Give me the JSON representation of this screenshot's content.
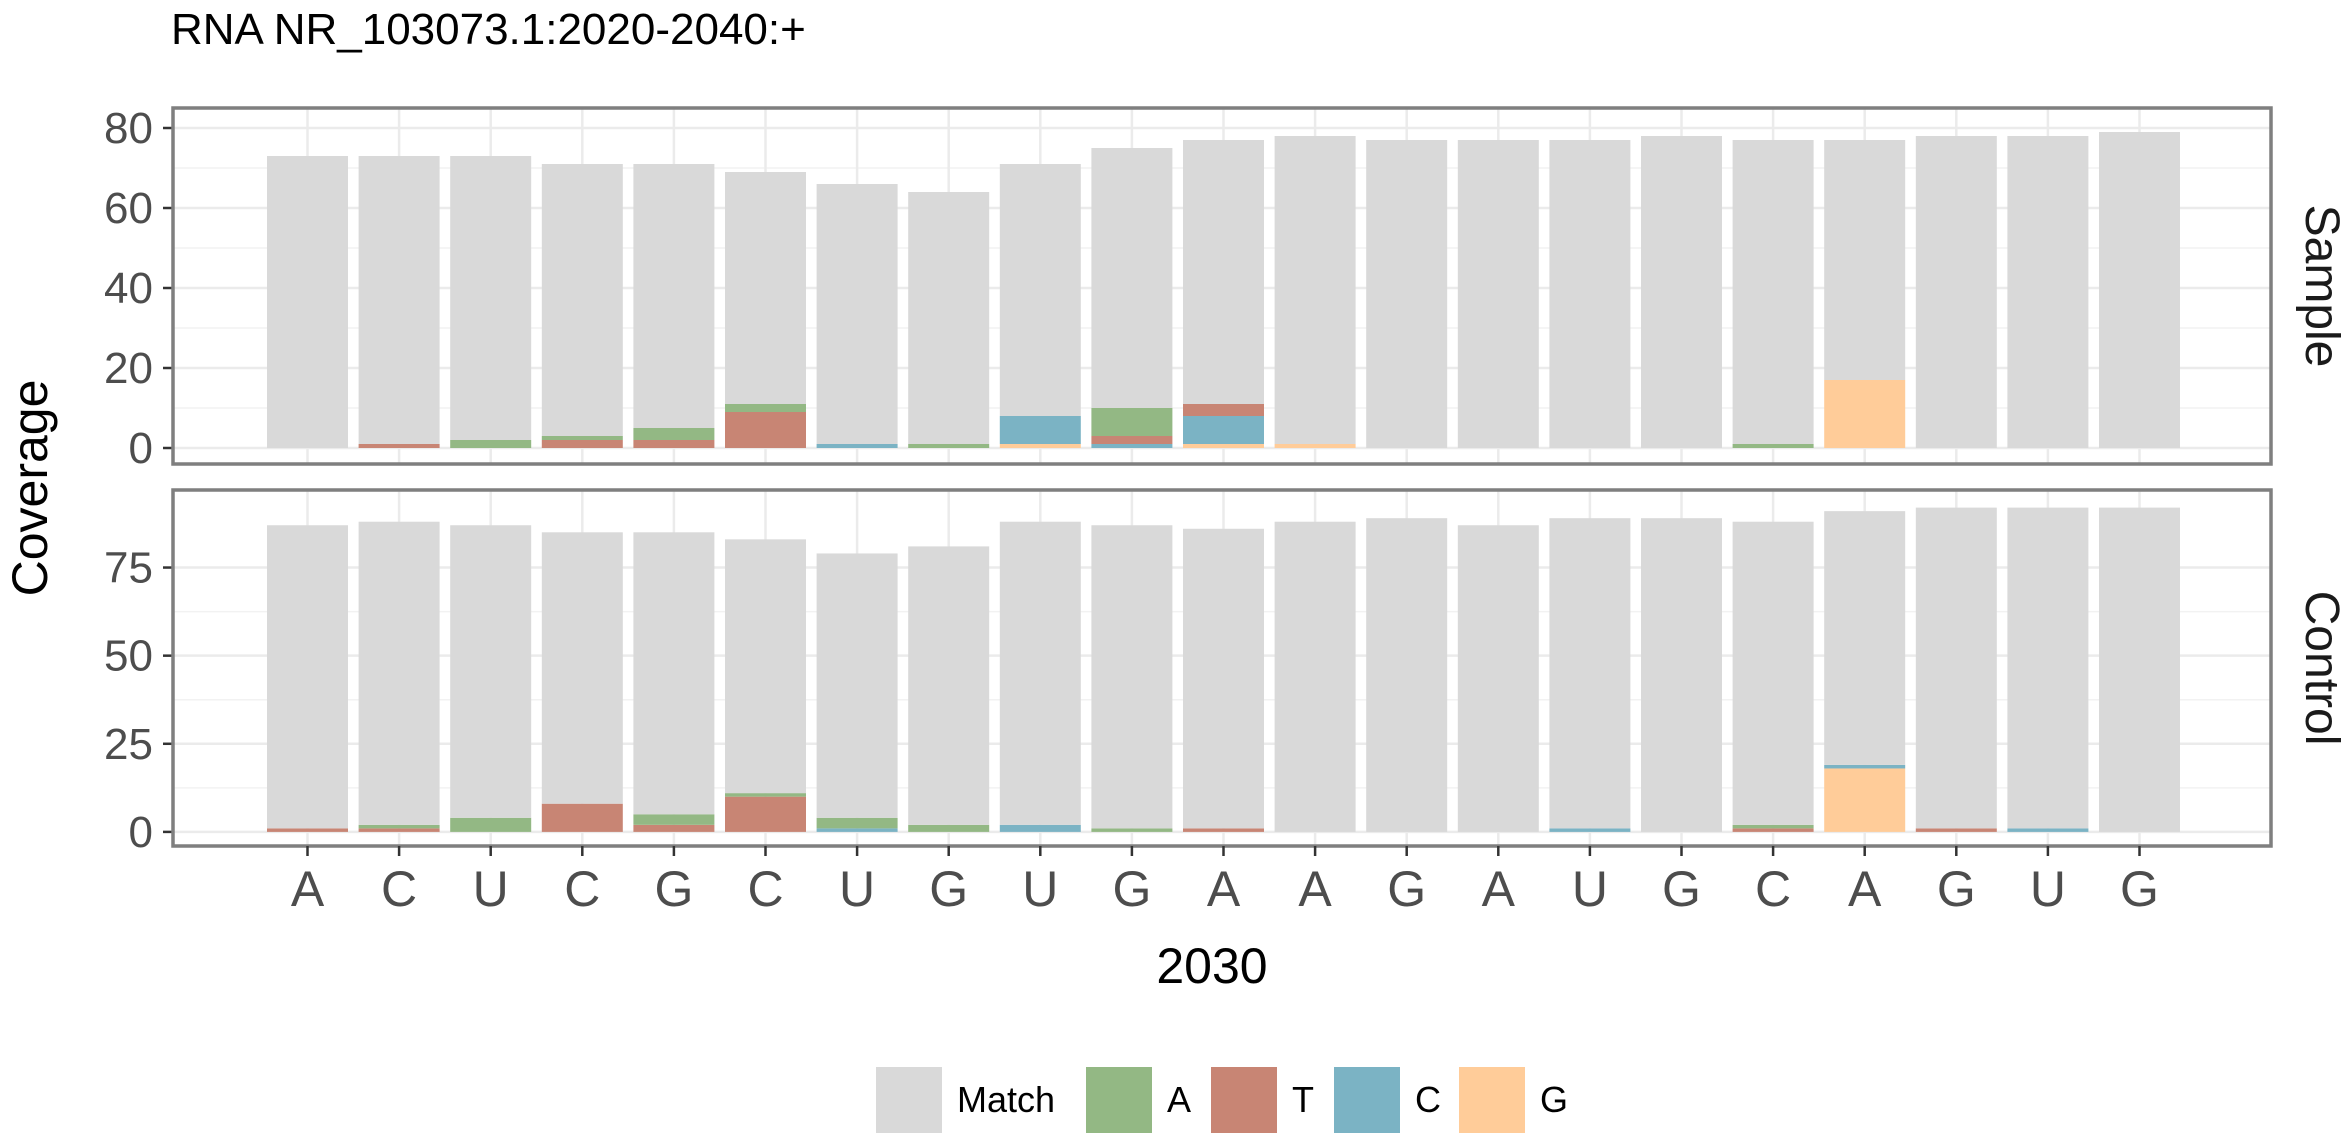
{
  "chart_data": {
    "type": "bar",
    "stacked": true,
    "title": "RNA  NR_103073.1:2020-2040:+",
    "xlabel": "2030",
    "ylabel": "Coverage",
    "x_tick_labels": [
      "A",
      "C",
      "U",
      "C",
      "G",
      "C",
      "U",
      "G",
      "U",
      "G",
      "A",
      "A",
      "G",
      "A",
      "U",
      "G",
      "C",
      "A",
      "G",
      "U",
      "G"
    ],
    "legend": {
      "placement": "bottom",
      "items": [
        {
          "key": "Match",
          "label": "Match",
          "color": "#d9d9d9"
        },
        {
          "key": "A",
          "label": "A",
          "color": "#93b884"
        },
        {
          "key": "T",
          "label": "T",
          "color": "#c88574"
        },
        {
          "key": "C",
          "label": "C",
          "color": "#7bb3c4"
        },
        {
          "key": "G",
          "label": "G",
          "color": "#ffcc99"
        }
      ]
    },
    "stack_order": [
      "G",
      "C",
      "T",
      "A",
      "Match"
    ],
    "panels": [
      {
        "name": "Sample",
        "ylim": [
          -4,
          85
        ],
        "yticks": [
          0,
          20,
          40,
          60,
          80
        ],
        "total": [
          73,
          73,
          73,
          71,
          71,
          69,
          66,
          64,
          71,
          75,
          77,
          78,
          77,
          77,
          77,
          78,
          77,
          77,
          78,
          78,
          79
        ],
        "series": {
          "G": [
            0,
            0,
            0,
            0,
            0,
            0,
            0,
            0,
            1,
            0,
            1,
            1,
            0,
            0,
            0,
            0,
            0,
            17,
            0,
            0,
            0
          ],
          "C": [
            0,
            0,
            0,
            0,
            0,
            0,
            1,
            0,
            7,
            1,
            7,
            0,
            0,
            0,
            0,
            0,
            0,
            0,
            0,
            0,
            0
          ],
          "T": [
            0,
            1,
            0,
            2,
            2,
            9,
            0,
            0,
            0,
            2,
            3,
            0,
            0,
            0,
            0,
            0,
            0,
            0,
            0,
            0,
            0
          ],
          "A": [
            0,
            0,
            2,
            1,
            3,
            2,
            0,
            1,
            0,
            7,
            0,
            0,
            0,
            0,
            0,
            0,
            1,
            0,
            0,
            0,
            0
          ]
        }
      },
      {
        "name": "Control",
        "ylim": [
          -4,
          97
        ],
        "yticks": [
          0,
          25,
          50,
          75
        ],
        "total": [
          87,
          88,
          87,
          85,
          85,
          83,
          79,
          81,
          88,
          87,
          86,
          88,
          89,
          87,
          89,
          89,
          88,
          91,
          92,
          92,
          92
        ],
        "series": {
          "G": [
            0,
            0,
            0,
            0,
            0,
            0,
            0,
            0,
            0,
            0,
            0,
            0,
            0,
            0,
            0,
            0,
            0,
            18,
            0,
            0,
            0
          ],
          "C": [
            0,
            0,
            0,
            0,
            0,
            0,
            1,
            0,
            2,
            0,
            0,
            0,
            0,
            0,
            1,
            0,
            0,
            1,
            0,
            1,
            0
          ],
          "T": [
            1,
            1,
            0,
            8,
            2,
            10,
            0,
            0,
            0,
            0,
            1,
            0,
            0,
            0,
            0,
            0,
            1,
            0,
            1,
            0,
            0
          ],
          "A": [
            0,
            1,
            4,
            0,
            3,
            1,
            3,
            2,
            0,
            1,
            0,
            0,
            0,
            0,
            0,
            0,
            1,
            0,
            0,
            0,
            0
          ]
        }
      }
    ]
  }
}
